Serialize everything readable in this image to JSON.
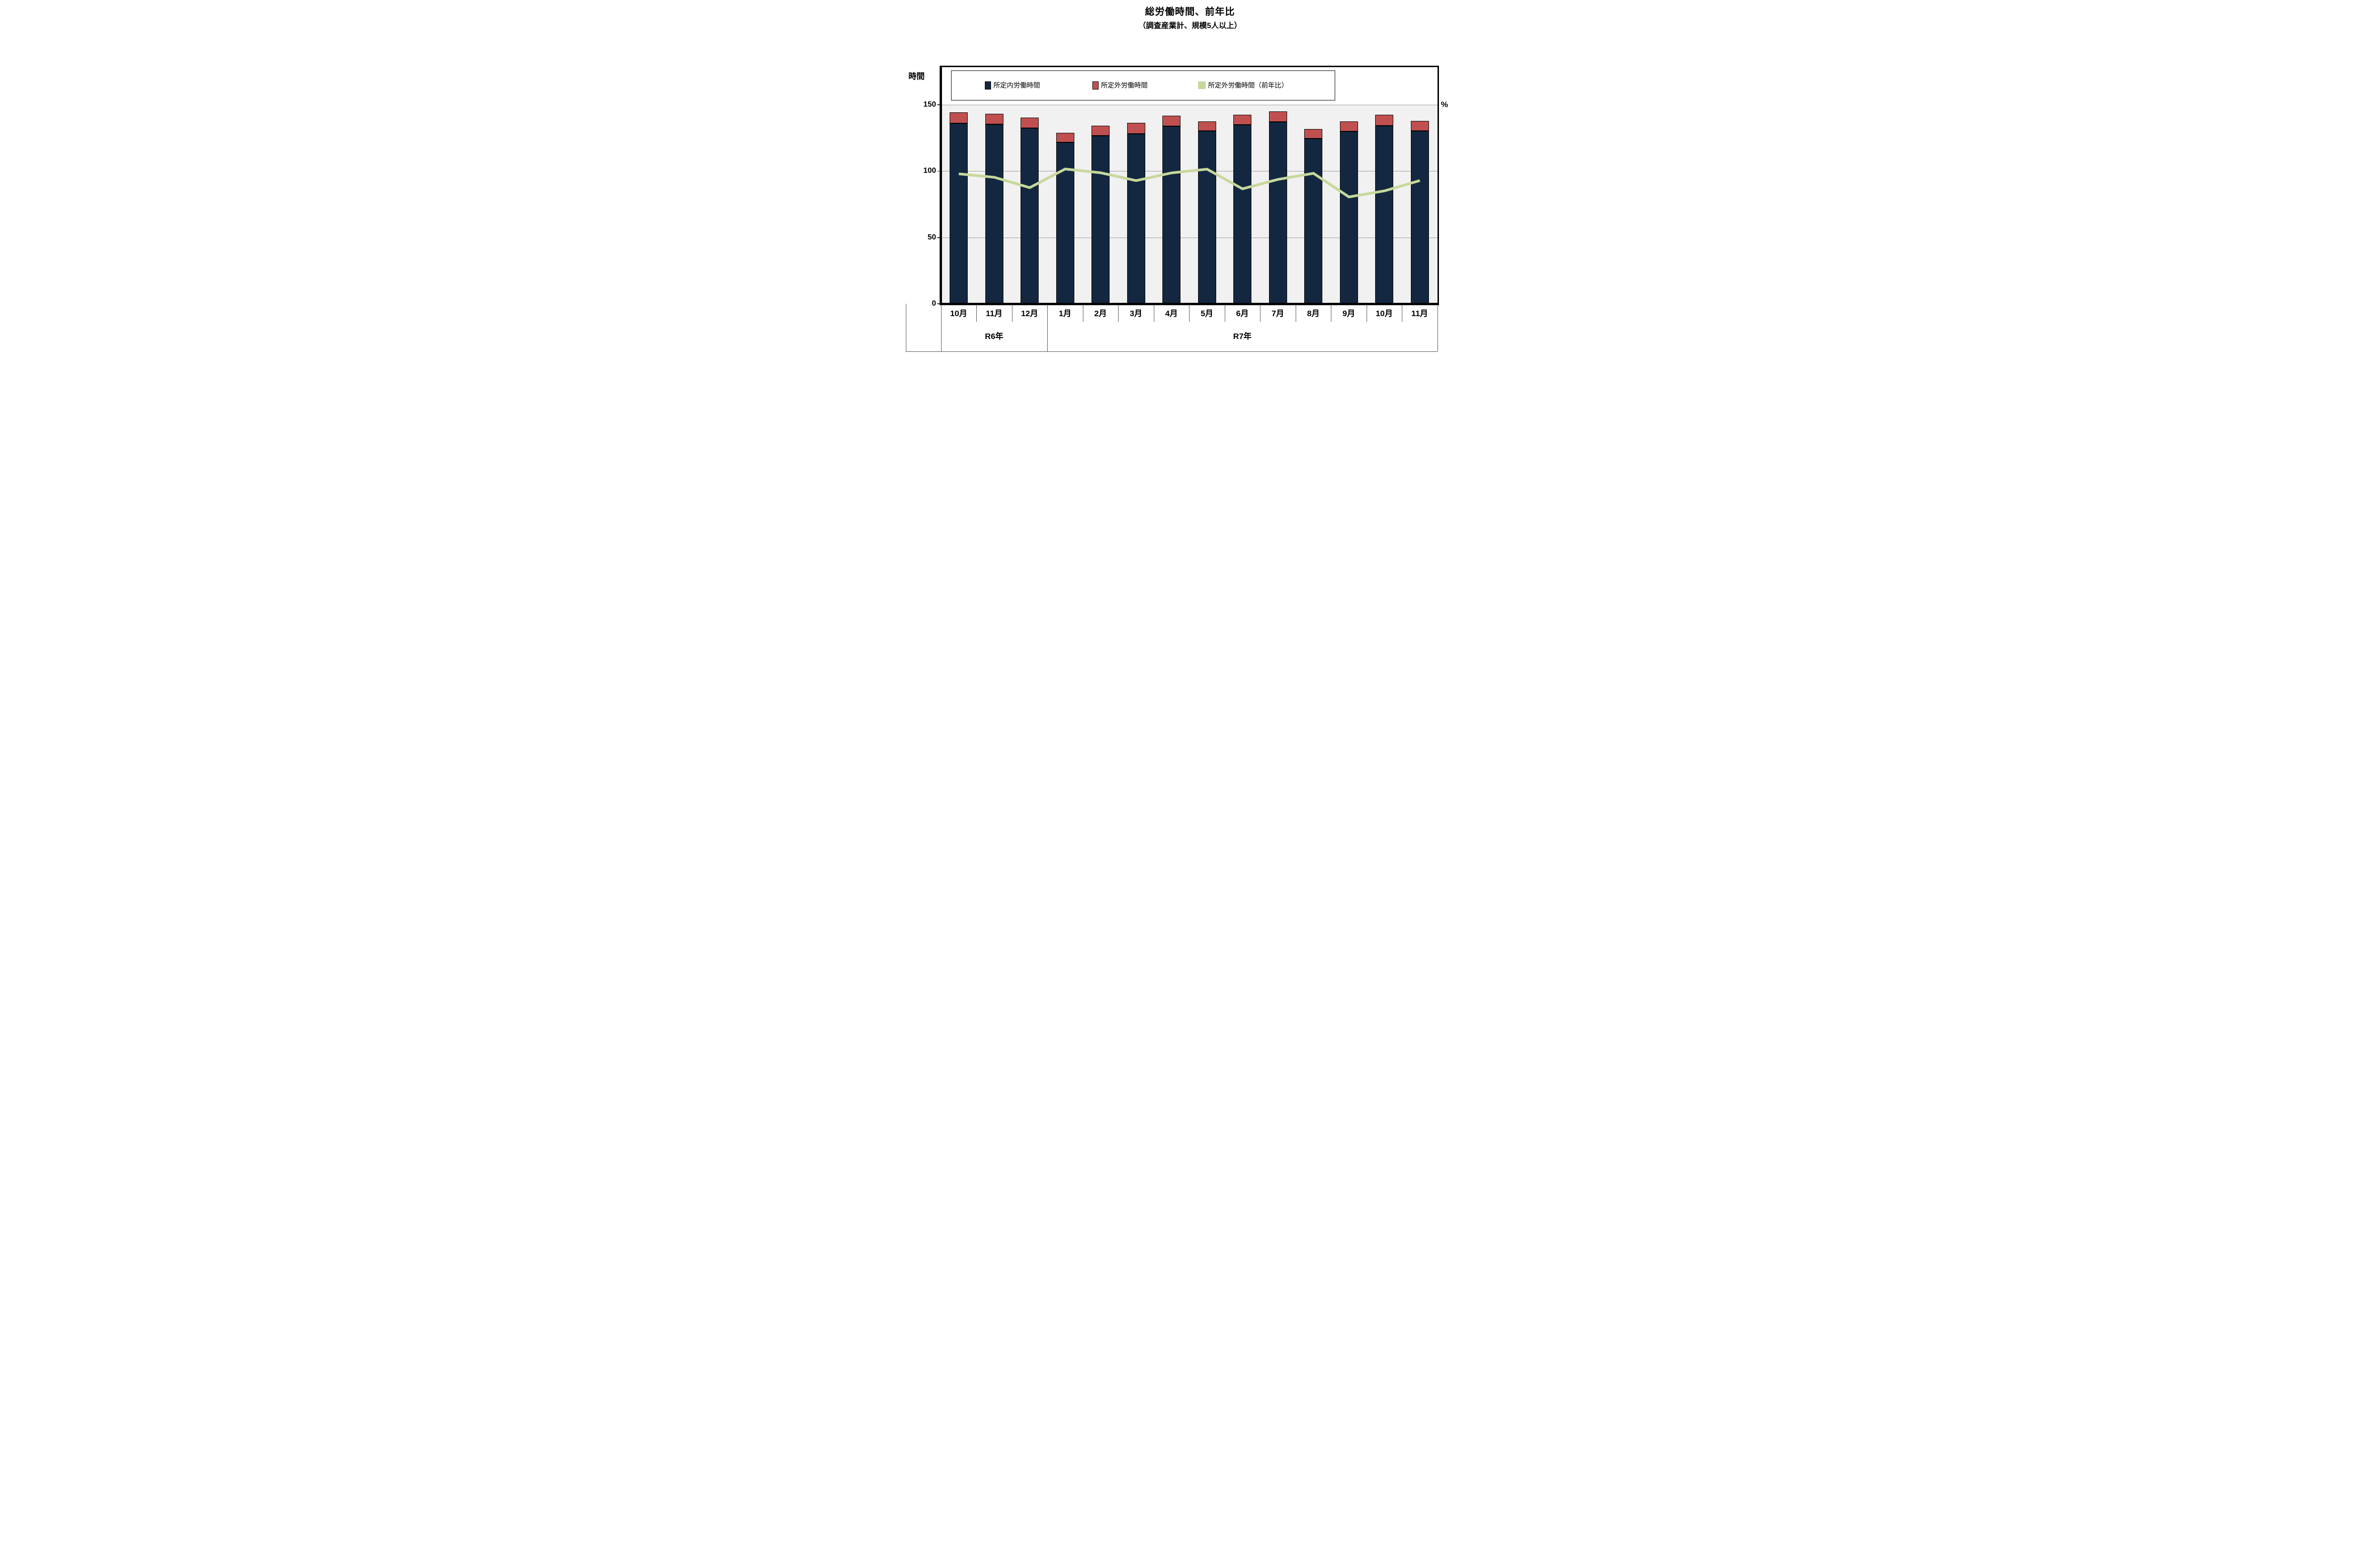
{
  "title": "総労働時間、前年比",
  "subtitle": "（調査産業計、規模5人以上）",
  "axes": {
    "left_unit": "時間",
    "right_unit": "%",
    "left_ticks": [
      "150",
      "100",
      "50",
      "0"
    ]
  },
  "legend": {
    "items": [
      {
        "label": "所定内労働時間",
        "color": "#132840",
        "marker": "bar-swatch"
      },
      {
        "label": "所定外労働時間",
        "color": "#C05050",
        "marker": "bar-swatch"
      },
      {
        "label": "所定外労働時間（前年比）",
        "color": "#C6D89B",
        "marker": "line-swatch"
      }
    ]
  },
  "x_axis": {
    "months": [
      "10月",
      "11月",
      "12月",
      "1月",
      "2月",
      "3月",
      "4月",
      "5月",
      "6月",
      "7月",
      "8月",
      "9月",
      "10月",
      "11月"
    ],
    "groups": [
      {
        "label": "R6年",
        "count": 3
      },
      {
        "label": "R7年",
        "count": 11
      }
    ]
  },
  "colors": {
    "scheduled_bar": "#132840",
    "overtime_bar": "#C05050",
    "yoy_line": "#C6D89B",
    "plot_background": "#F1F1F1",
    "gridline": "#9C9C9C",
    "bar_border": "#000000",
    "frame": "#000000"
  },
  "chart_data": {
    "type": "combo",
    "categories": [
      "10月",
      "11月",
      "12月",
      "1月",
      "2月",
      "3月",
      "4月",
      "5月",
      "6月",
      "7月",
      "8月",
      "9月",
      "10月",
      "11月"
    ],
    "category_groups": [
      {
        "label": "R6年",
        "months": [
          "10月",
          "11月",
          "12月"
        ]
      },
      {
        "label": "R7年",
        "months": [
          "1月",
          "2月",
          "3月",
          "4月",
          "5月",
          "6月",
          "7月",
          "8月",
          "9月",
          "10月",
          "11月"
        ]
      }
    ],
    "series": [
      {
        "name": "所定内労働時間",
        "chart_type": "bar",
        "stacked": true,
        "axis": "left",
        "color": "#132840",
        "values": [
          136.0,
          135.3,
          132.4,
          121.5,
          126.6,
          128.2,
          133.9,
          130.3,
          135.0,
          137.1,
          124.6,
          129.8,
          134.3,
          130.1
        ]
      },
      {
        "name": "所定外労働時間",
        "chart_type": "bar",
        "stacked": true,
        "axis": "left",
        "color": "#C05050",
        "values": [
          8.2,
          7.9,
          7.9,
          7.3,
          7.6,
          8.3,
          7.8,
          7.1,
          7.5,
          7.7,
          7.0,
          7.6,
          8.0,
          7.8
        ]
      },
      {
        "name": "所定外労働時間（前年比）",
        "chart_type": "line",
        "axis": "right",
        "color": "#C6D89B",
        "values": [
          97.8,
          95.2,
          87.4,
          101.4,
          98.6,
          92.7,
          98.5,
          101.3,
          86.5,
          93.6,
          98.2,
          80.4,
          84.9,
          92.7
        ]
      }
    ],
    "left_axis": {
      "label": "時間",
      "range": [
        0,
        150
      ],
      "tick_interval": 50,
      "gridlines": [
        50,
        100,
        150
      ]
    },
    "right_axis": {
      "label": "%",
      "tick_labels_visible": false
    },
    "legend_position": "top",
    "grid": true
  }
}
